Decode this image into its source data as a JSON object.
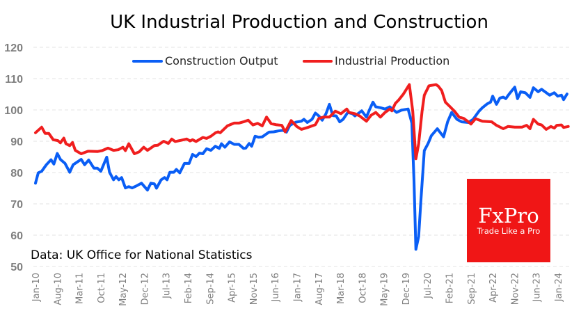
{
  "chart_data": {
    "type": "line",
    "title": "UK Industrial Production and Construction",
    "xlabel": "",
    "ylabel": "",
    "ylim": [
      50,
      120
    ],
    "yticks": [
      50,
      60,
      70,
      80,
      90,
      100,
      110,
      120
    ],
    "grid": true,
    "legend_position": "top-center",
    "x_start": "Jan-10",
    "x_unit": "month index from Jan-10",
    "xlim": [
      0,
      172
    ],
    "xtick_labels": [
      "Jan-10",
      "Aug-10",
      "Mar-11",
      "Oct-11",
      "May-12",
      "Dec-12",
      "Jul-13",
      "Feb-14",
      "Sep-14",
      "Apr-15",
      "Nov-15",
      "Jun-16",
      "Jan-17",
      "Aug-17",
      "Mar-18",
      "Oct-18",
      "May-19",
      "Dec-19",
      "Jul-20",
      "Feb-21",
      "Sep-21",
      "Apr-22",
      "Nov-22",
      "Jun-23",
      "Jan-24"
    ],
    "xtick_step_months": 7,
    "annotation": "Data: UK Office for National Statistics",
    "series": [
      {
        "name": "Construction Output",
        "color": "#0a5ef5",
        "points": [
          [
            0,
            76.6
          ],
          [
            0.9,
            79.9
          ],
          [
            2,
            80.4
          ],
          [
            3.5,
            82.5
          ],
          [
            5,
            84.1
          ],
          [
            5.9,
            82.7
          ],
          [
            7,
            86.1
          ],
          [
            8,
            84.2
          ],
          [
            9.5,
            82.9
          ],
          [
            11,
            80.1
          ],
          [
            12.1,
            82.5
          ],
          [
            14.7,
            84.2
          ],
          [
            15.8,
            82.5
          ],
          [
            17.1,
            84
          ],
          [
            18.8,
            81.4
          ],
          [
            19.9,
            81.4
          ],
          [
            21,
            80.4
          ],
          [
            22.9,
            84.9
          ],
          [
            23.8,
            80.1
          ],
          [
            25.1,
            77.7
          ],
          [
            25.9,
            78.7
          ],
          [
            26.8,
            77.7
          ],
          [
            27.7,
            78.4
          ],
          [
            28.9,
            75.1
          ],
          [
            30,
            75.5
          ],
          [
            31.1,
            75.1
          ],
          [
            32.6,
            75.8
          ],
          [
            34.1,
            76.6
          ],
          [
            36,
            74.4
          ],
          [
            37.1,
            76.6
          ],
          [
            38.2,
            76.4
          ],
          [
            38.9,
            75
          ],
          [
            40.4,
            77.7
          ],
          [
            41.5,
            78.4
          ],
          [
            42.3,
            77.7
          ],
          [
            43.2,
            80.1
          ],
          [
            44.5,
            80.1
          ],
          [
            45.3,
            81
          ],
          [
            46.4,
            79.9
          ],
          [
            47.9,
            82.9
          ],
          [
            49.4,
            82.9
          ],
          [
            50.5,
            85.8
          ],
          [
            51.6,
            85.1
          ],
          [
            52.7,
            86.2
          ],
          [
            53.8,
            86
          ],
          [
            55,
            87.6
          ],
          [
            56.4,
            87.1
          ],
          [
            57.8,
            88.4
          ],
          [
            59.1,
            87.7
          ],
          [
            59.8,
            89.2
          ],
          [
            60.9,
            88.1
          ],
          [
            62.4,
            89.8
          ],
          [
            63.9,
            89
          ],
          [
            65.4,
            89
          ],
          [
            66.9,
            87.7
          ],
          [
            67.6,
            87.8
          ],
          [
            68.7,
            89.3
          ],
          [
            69.5,
            88.4
          ],
          [
            70.6,
            91.6
          ],
          [
            71.7,
            91.3
          ],
          [
            72.9,
            91.4
          ],
          [
            75.1,
            92.9
          ],
          [
            76.6,
            93
          ],
          [
            78.1,
            93.3
          ],
          [
            79.6,
            93.5
          ],
          [
            80.7,
            92.9
          ],
          [
            81.8,
            95.1
          ],
          [
            83.7,
            96.1
          ],
          [
            85.5,
            96.4
          ],
          [
            86.3,
            97
          ],
          [
            87.4,
            96
          ],
          [
            88.9,
            97
          ],
          [
            90,
            99
          ],
          [
            91.1,
            98.1
          ],
          [
            92.2,
            96.7
          ],
          [
            93.4,
            98.8
          ],
          [
            94.5,
            101.8
          ],
          [
            95.6,
            98.2
          ],
          [
            96.7,
            98.1
          ],
          [
            97.8,
            96.2
          ],
          [
            98.9,
            97
          ],
          [
            100.4,
            99.2
          ],
          [
            101.9,
            98.8
          ],
          [
            102.7,
            98.1
          ],
          [
            104.9,
            99.7
          ],
          [
            106.4,
            97.7
          ],
          [
            107.5,
            100.3
          ],
          [
            108.5,
            102.5
          ],
          [
            109.4,
            101
          ],
          [
            110.9,
            100.7
          ],
          [
            112.4,
            100.3
          ],
          [
            113.9,
            101
          ],
          [
            116.1,
            99.2
          ],
          [
            117.6,
            99.9
          ],
          [
            119.8,
            100.3
          ],
          [
            121,
            95.8
          ],
          [
            121.7,
            77.3
          ],
          [
            122.3,
            55.5
          ],
          [
            123.2,
            59.6
          ],
          [
            123.9,
            70.7
          ],
          [
            125,
            87
          ],
          [
            126.2,
            89.2
          ],
          [
            127.3,
            91.8
          ],
          [
            129.2,
            94
          ],
          [
            131.2,
            91.4
          ],
          [
            132.5,
            96.2
          ],
          [
            133.8,
            99.2
          ],
          [
            135.5,
            97
          ],
          [
            137,
            96.2
          ],
          [
            139.2,
            96
          ],
          [
            140.7,
            97
          ],
          [
            142.6,
            99.6
          ],
          [
            143.7,
            100.7
          ],
          [
            145.2,
            101.9
          ],
          [
            146.3,
            102.5
          ],
          [
            147,
            104.4
          ],
          [
            148.2,
            101.8
          ],
          [
            149.3,
            103.8
          ],
          [
            150.4,
            104.1
          ],
          [
            151.2,
            103.6
          ],
          [
            152.3,
            105.1
          ],
          [
            154.1,
            107.3
          ],
          [
            155,
            103.6
          ],
          [
            156,
            105.8
          ],
          [
            157.5,
            105.5
          ],
          [
            159,
            104
          ],
          [
            160.1,
            107.1
          ],
          [
            161.6,
            105.8
          ],
          [
            162.7,
            106.6
          ],
          [
            165.3,
            104.7
          ],
          [
            166.8,
            105.5
          ],
          [
            167.9,
            104.4
          ],
          [
            169.1,
            104.7
          ],
          [
            169.8,
            103.3
          ],
          [
            170.9,
            105.1
          ]
        ]
      },
      {
        "name": "Industrial Production",
        "color": "#f01e1e",
        "points": [
          [
            0,
            92.7
          ],
          [
            2,
            94.5
          ],
          [
            3.1,
            92.5
          ],
          [
            4.3,
            92.5
          ],
          [
            5.7,
            90.5
          ],
          [
            7.2,
            90.2
          ],
          [
            8,
            89.5
          ],
          [
            9.1,
            91
          ],
          [
            9.8,
            89.2
          ],
          [
            11,
            88.6
          ],
          [
            11.9,
            89.6
          ],
          [
            12.8,
            87.1
          ],
          [
            14.7,
            86
          ],
          [
            16.9,
            86.8
          ],
          [
            19.9,
            86.7
          ],
          [
            21.4,
            87
          ],
          [
            23.3,
            87.8
          ],
          [
            25.1,
            87.1
          ],
          [
            26.6,
            87.3
          ],
          [
            28.1,
            88.1
          ],
          [
            28.9,
            87
          ],
          [
            30,
            89.2
          ],
          [
            31.8,
            86
          ],
          [
            33.3,
            86.6
          ],
          [
            34.8,
            88.1
          ],
          [
            36,
            87.1
          ],
          [
            38.2,
            88.6
          ],
          [
            39.3,
            88.7
          ],
          [
            41.2,
            90
          ],
          [
            42.7,
            89.3
          ],
          [
            43.8,
            90.7
          ],
          [
            44.9,
            89.9
          ],
          [
            46.8,
            90.3
          ],
          [
            48.6,
            90.7
          ],
          [
            49.7,
            90.1
          ],
          [
            50.5,
            90.5
          ],
          [
            51.6,
            89.9
          ],
          [
            53.8,
            91.2
          ],
          [
            55,
            90.9
          ],
          [
            56.4,
            91.6
          ],
          [
            57.9,
            92.7
          ],
          [
            58.7,
            93
          ],
          [
            59.4,
            92.7
          ],
          [
            61.7,
            94.9
          ],
          [
            63.9,
            95.8
          ],
          [
            65.4,
            95.8
          ],
          [
            66.9,
            96.2
          ],
          [
            68.4,
            96.7
          ],
          [
            69.9,
            95.2
          ],
          [
            71.4,
            95.7
          ],
          [
            72.9,
            94.9
          ],
          [
            74.3,
            97.7
          ],
          [
            75.8,
            95.6
          ],
          [
            77.3,
            95.3
          ],
          [
            79.2,
            95.1
          ],
          [
            80.3,
            93
          ],
          [
            82.2,
            96.6
          ],
          [
            84,
            94.7
          ],
          [
            85.5,
            93.8
          ],
          [
            87.8,
            94.5
          ],
          [
            90,
            95.3
          ],
          [
            91.1,
            97.3
          ],
          [
            92.6,
            97.7
          ],
          [
            94.5,
            97.7
          ],
          [
            96.4,
            99.6
          ],
          [
            98.2,
            98.8
          ],
          [
            100.1,
            100.3
          ],
          [
            100.8,
            99.2
          ],
          [
            102.7,
            98.8
          ],
          [
            104.2,
            98.1
          ],
          [
            106.4,
            96.4
          ],
          [
            107.9,
            98.3
          ],
          [
            109.4,
            99.2
          ],
          [
            110.9,
            97.7
          ],
          [
            112.4,
            99.2
          ],
          [
            113.9,
            100.3
          ],
          [
            114.6,
            99.7
          ],
          [
            115.7,
            102.1
          ],
          [
            116.8,
            103.2
          ],
          [
            118.3,
            105.1
          ],
          [
            120.2,
            108.1
          ],
          [
            121.3,
            99.6
          ],
          [
            122.3,
            84.4
          ],
          [
            123.2,
            89.2
          ],
          [
            124.3,
            99.6
          ],
          [
            125,
            104.7
          ],
          [
            126.5,
            107.7
          ],
          [
            128.8,
            108.1
          ],
          [
            129.5,
            107.6
          ],
          [
            130.6,
            106.2
          ],
          [
            131.8,
            102.5
          ],
          [
            133.3,
            101
          ],
          [
            134.7,
            99.6
          ],
          [
            136.2,
            97.7
          ],
          [
            137.7,
            97.3
          ],
          [
            139.2,
            96.2
          ],
          [
            140,
            95.5
          ],
          [
            141.5,
            97.2
          ],
          [
            143.7,
            96.4
          ],
          [
            146.7,
            96.2
          ],
          [
            148.2,
            95.1
          ],
          [
            150.4,
            94
          ],
          [
            151.9,
            94.7
          ],
          [
            154.1,
            94.5
          ],
          [
            156.4,
            94.5
          ],
          [
            157.9,
            95.1
          ],
          [
            159,
            94
          ],
          [
            160.1,
            97
          ],
          [
            161.6,
            95.5
          ],
          [
            162.7,
            95.2
          ],
          [
            164.2,
            93.8
          ],
          [
            165.7,
            94.7
          ],
          [
            166.8,
            94.2
          ],
          [
            167.6,
            95.1
          ],
          [
            169.1,
            95.2
          ],
          [
            169.8,
            94.4
          ],
          [
            171.3,
            94.7
          ]
        ]
      }
    ]
  },
  "logo": {
    "brand": "FxPro",
    "tagline": "Trade Like a Pro",
    "color": "#f01616"
  }
}
